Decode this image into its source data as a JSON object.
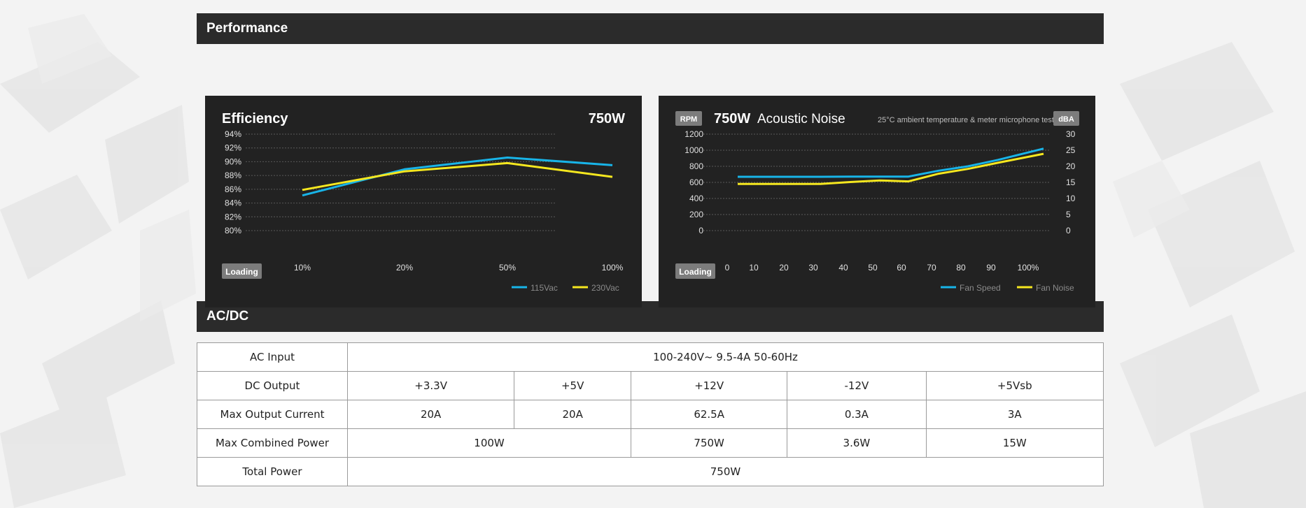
{
  "performance": {
    "title": "Performance"
  },
  "acdc": {
    "title": "AC/DC"
  },
  "efficiency_chart": {
    "title": "Efficiency",
    "wattage": "750W",
    "loading_label": "Loading"
  },
  "noise_chart": {
    "wattage": "750W",
    "title": "Acoustic Noise",
    "subtitle": "25°C ambient temperature & meter microphone test",
    "left_unit": "RPM",
    "right_unit": "dBA",
    "loading_label": "Loading"
  },
  "colors": {
    "blue": "#18b4e8",
    "yellow": "#f5e71f",
    "header_bg": "#2b2b2b",
    "panel_bg": "#222222"
  },
  "chart_data": [
    {
      "type": "line",
      "title": "Efficiency",
      "xlabel": "Loading",
      "categories": [
        "10%",
        "20%",
        "50%",
        "100%"
      ],
      "y_tick_labels": [
        "80%",
        "82%",
        "84%",
        "86%",
        "88%",
        "90%",
        "92%",
        "94%"
      ],
      "ylim": [
        80,
        94
      ],
      "grid": true,
      "legend_position": "bottom-right",
      "series": [
        {
          "name": "115Vac",
          "color": "#18b4e8",
          "values": [
            85.1,
            88.9,
            90.6,
            89.5
          ]
        },
        {
          "name": "230Vac",
          "color": "#f5e71f",
          "values": [
            85.9,
            88.6,
            89.8,
            87.8
          ]
        }
      ]
    },
    {
      "type": "line",
      "title": "Acoustic Noise",
      "xlabel": "Loading",
      "x": [
        0,
        10,
        20,
        30,
        40,
        50,
        60,
        70,
        80,
        90,
        100
      ],
      "x_tick_labels": [
        "0",
        "10",
        "20",
        "30",
        "40",
        "50",
        "60",
        "70",
        "80",
        "90",
        "100%"
      ],
      "y_tick_labels_left": [
        "0",
        "200",
        "400",
        "600",
        "800",
        "1000",
        "1200"
      ],
      "y_tick_labels_right": [
        "0",
        "5",
        "10",
        "15",
        "20",
        "25",
        "30"
      ],
      "ylim_left": [
        0,
        1200
      ],
      "ylim_right": [
        0,
        30
      ],
      "ylabel_left": "RPM",
      "ylabel_right": "dBA",
      "grid": true,
      "legend_position": "bottom-right",
      "series": [
        {
          "name": "Fan Speed",
          "axis": "left",
          "color": "#18b4e8",
          "values": [
            670,
            670,
            670,
            670,
            672,
            672,
            672,
            745,
            800,
            880,
            1020
          ]
        },
        {
          "name": "Fan Noise",
          "axis": "right",
          "color": "#f5e71f",
          "values": [
            14.5,
            14.5,
            14.5,
            14.5,
            15.1,
            15.6,
            15.3,
            17.7,
            19.2,
            21.1,
            23.9
          ]
        }
      ]
    }
  ],
  "acdc_table": {
    "ac_input_label": "AC Input",
    "ac_input_value": "100-240V~ 9.5-4A 50-60Hz",
    "dc_output_label": "DC Output",
    "dc_output": [
      "+3.3V",
      "+5V",
      "+12V",
      "-12V",
      "+5Vsb"
    ],
    "max_current_label": "Max Output Current",
    "max_current": [
      "20A",
      "20A",
      "62.5A",
      "0.3A",
      "3A"
    ],
    "max_combined_label": "Max Combined Power",
    "max_combined": [
      "100W",
      "750W",
      "3.6W",
      "15W"
    ],
    "total_power_label": "Total Power",
    "total_power": "750W"
  }
}
